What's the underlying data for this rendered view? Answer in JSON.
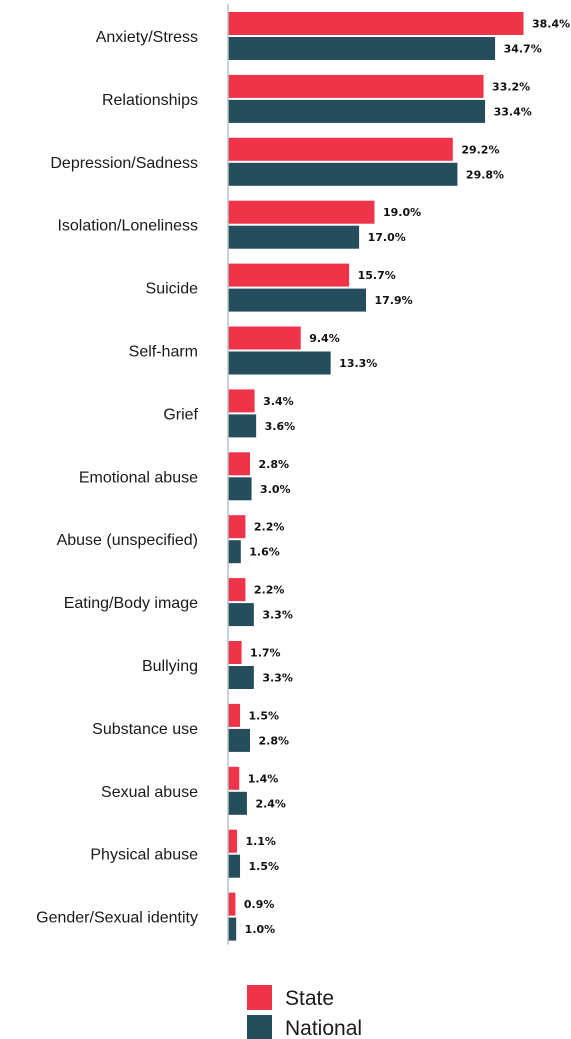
{
  "chart_data": {
    "type": "bar",
    "orientation": "horizontal",
    "categories": [
      "Anxiety/Stress",
      "Relationships",
      "Depression/Sadness",
      "Isolation/Loneliness",
      "Suicide",
      "Self-harm",
      "Grief",
      "Emotional abuse",
      "Abuse (unspecified)",
      "Eating/Body image",
      "Bullying",
      "Substance use",
      "Sexual abuse",
      "Physical abuse",
      "Gender/Sexual identity"
    ],
    "series": [
      {
        "name": "State",
        "color": "#ef3348",
        "values": [
          38.4,
          33.2,
          29.2,
          19.0,
          15.7,
          9.4,
          3.4,
          2.8,
          2.2,
          2.2,
          1.7,
          1.5,
          1.4,
          1.1,
          0.9
        ],
        "labels": [
          "38.4%",
          "33.2%",
          "29.2%",
          "19.0%",
          "15.7%",
          "9.4%",
          "3.4%",
          "2.8%",
          "2.2%",
          "2.2%",
          "1.7%",
          "1.5%",
          "1.4%",
          "1.1%",
          "0.9%"
        ]
      },
      {
        "name": "National",
        "color": "#264d5c",
        "values": [
          34.7,
          33.4,
          29.8,
          17.0,
          17.9,
          13.3,
          3.6,
          3.0,
          1.6,
          3.3,
          3.3,
          2.8,
          2.4,
          1.5,
          1.0
        ],
        "labels": [
          "34.7%",
          "33.4%",
          "29.8%",
          "17.0%",
          "17.9%",
          "13.3%",
          "3.6%",
          "3.0%",
          "1.6%",
          "3.3%",
          "3.3%",
          "2.8%",
          "2.4%",
          "1.5%",
          "1.0%"
        ]
      }
    ],
    "xlim": [
      0,
      40
    ],
    "axis_color": "#b8c4cc",
    "grid": false,
    "legend_position": "bottom"
  }
}
